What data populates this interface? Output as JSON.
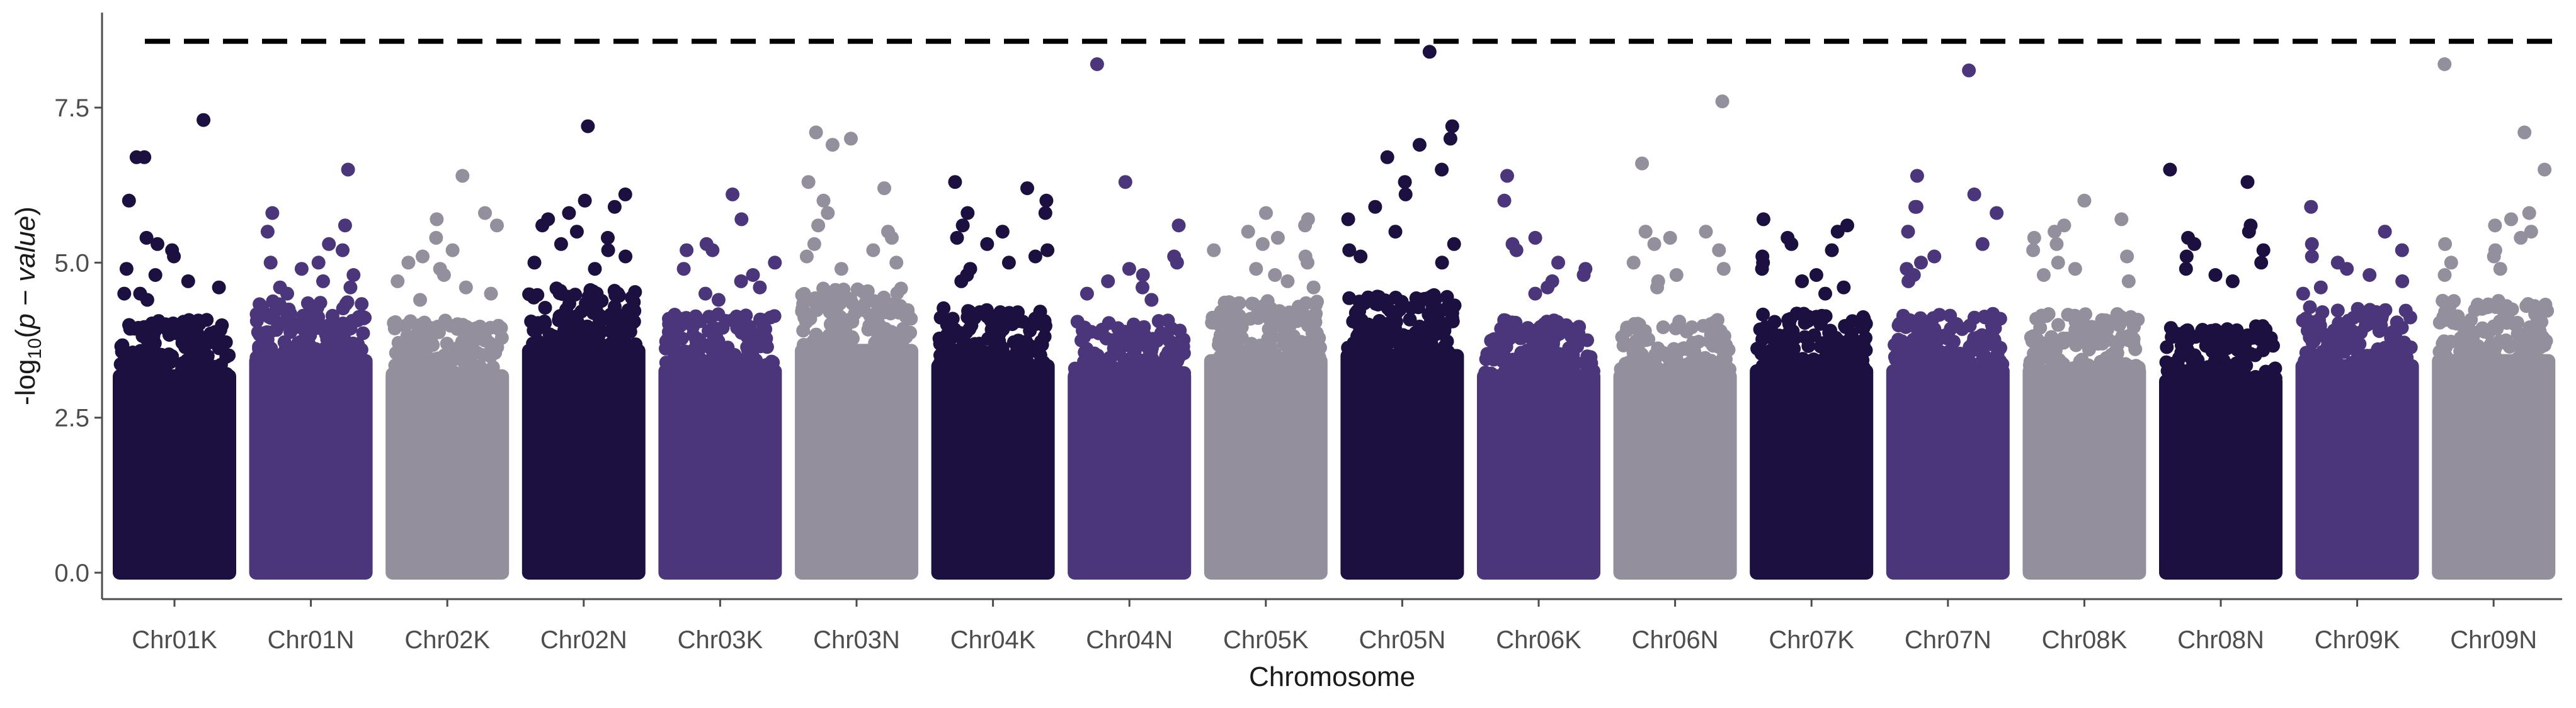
{
  "chart_data": {
    "type": "scatter",
    "subtype": "manhattan",
    "title": "",
    "xlabel": "Chromosome",
    "ylabel": "-log10(p − value)",
    "ylabel_parts": {
      "prefix": "-log",
      "sub": "10",
      "open": "(",
      "var1": "p",
      "op": " − ",
      "var2": "value",
      "close": ")"
    },
    "ylim": [
      -0.1,
      8.75
    ],
    "yticks": [
      0.0,
      2.5,
      5.0,
      7.5
    ],
    "ytick_labels": [
      "0.0",
      "2.5",
      "5.0",
      "7.5"
    ],
    "significance_threshold": 8.57,
    "grid": false,
    "legend": "none",
    "colors": [
      "#1c1040",
      "#4b357b",
      "#948f9c"
    ],
    "categories": [
      "Chr01K",
      "Chr01N",
      "Chr02K",
      "Chr02N",
      "Chr03K",
      "Chr03N",
      "Chr04K",
      "Chr04N",
      "Chr05K",
      "Chr05N",
      "Chr06K",
      "Chr06N",
      "Chr07K",
      "Chr07N",
      "Chr08K",
      "Chr08N",
      "Chr09K",
      "Chr09N"
    ],
    "series": [
      {
        "chromosome": "Chr01K",
        "color_index": 0,
        "bulk_max": 4.0,
        "peaks": [
          7.3,
          6.7,
          6.7,
          6.0,
          5.4,
          5.3,
          5.2,
          5.1,
          4.9,
          4.8,
          4.7,
          4.6,
          4.5,
          4.5,
          4.4
        ]
      },
      {
        "chromosome": "Chr01N",
        "color_index": 1,
        "bulk_max": 4.3,
        "peaks": [
          6.5,
          5.8,
          5.6,
          5.5,
          5.3,
          5.2,
          5.0,
          5.0,
          4.9,
          4.8,
          4.7,
          4.6,
          4.6,
          4.5
        ]
      },
      {
        "chromosome": "Chr02K",
        "color_index": 2,
        "bulk_max": 4.0,
        "peaks": [
          6.4,
          5.8,
          5.7,
          5.6,
          5.4,
          5.2,
          5.1,
          5.0,
          4.9,
          4.8,
          4.7,
          4.6,
          4.5,
          4.4
        ]
      },
      {
        "chromosome": "Chr02N",
        "color_index": 0,
        "bulk_max": 4.5,
        "peaks": [
          7.2,
          6.1,
          6.0,
          5.9,
          5.8,
          5.7,
          5.6,
          5.5,
          5.4,
          5.3,
          5.2,
          5.1,
          5.0,
          4.9
        ]
      },
      {
        "chromosome": "Chr03K",
        "color_index": 1,
        "bulk_max": 4.1,
        "peaks": [
          6.1,
          5.7,
          5.3,
          5.2,
          5.2,
          5.0,
          4.9,
          4.8,
          4.7,
          4.6,
          4.5,
          4.4
        ]
      },
      {
        "chromosome": "Chr03N",
        "color_index": 2,
        "bulk_max": 4.5,
        "peaks": [
          7.1,
          7.0,
          6.9,
          6.3,
          6.2,
          6.0,
          5.8,
          5.6,
          5.5,
          5.4,
          5.3,
          5.2,
          5.1,
          5.0,
          4.9
        ]
      },
      {
        "chromosome": "Chr04K",
        "color_index": 0,
        "bulk_max": 4.2,
        "peaks": [
          6.3,
          6.2,
          6.0,
          5.8,
          5.8,
          5.6,
          5.5,
          5.4,
          5.3,
          5.2,
          5.1,
          5.0,
          4.9,
          4.8,
          4.7
        ]
      },
      {
        "chromosome": "Chr04N",
        "color_index": 1,
        "bulk_max": 4.0,
        "peaks": [
          8.2,
          6.3,
          5.6,
          5.1,
          5.0,
          4.9,
          4.8,
          4.7,
          4.6,
          4.5,
          4.4
        ]
      },
      {
        "chromosome": "Chr05K",
        "color_index": 2,
        "bulk_max": 4.3,
        "peaks": [
          5.8,
          5.7,
          5.6,
          5.5,
          5.4,
          5.3,
          5.2,
          5.1,
          5.0,
          4.9,
          4.8,
          4.7,
          4.6
        ]
      },
      {
        "chromosome": "Chr05N",
        "color_index": 0,
        "bulk_max": 4.4,
        "peaks": [
          8.4,
          7.2,
          7.0,
          6.9,
          6.7,
          6.5,
          6.3,
          6.1,
          5.9,
          5.7,
          5.5,
          5.3,
          5.2,
          5.1,
          5.0
        ]
      },
      {
        "chromosome": "Chr06K",
        "color_index": 1,
        "bulk_max": 4.0,
        "peaks": [
          6.4,
          6.0,
          5.4,
          5.3,
          5.2,
          5.0,
          4.9,
          4.8,
          4.7,
          4.6,
          4.5
        ]
      },
      {
        "chromosome": "Chr06N",
        "color_index": 2,
        "bulk_max": 4.0,
        "peaks": [
          7.6,
          6.6,
          5.5,
          5.5,
          5.4,
          5.3,
          5.2,
          5.0,
          4.9,
          4.8,
          4.7,
          4.6
        ]
      },
      {
        "chromosome": "Chr07K",
        "color_index": 0,
        "bulk_max": 4.1,
        "peaks": [
          5.7,
          5.6,
          5.5,
          5.4,
          5.3,
          5.2,
          5.1,
          5.0,
          4.9,
          4.8,
          4.7,
          4.6,
          4.5
        ]
      },
      {
        "chromosome": "Chr07N",
        "color_index": 1,
        "bulk_max": 4.1,
        "peaks": [
          8.1,
          6.4,
          6.1,
          5.9,
          5.9,
          5.8,
          5.5,
          5.3,
          5.1,
          5.0,
          4.9,
          4.8,
          4.7
        ]
      },
      {
        "chromosome": "Chr08K",
        "color_index": 2,
        "bulk_max": 4.1,
        "peaks": [
          6.0,
          5.7,
          5.6,
          5.5,
          5.4,
          5.3,
          5.2,
          5.1,
          5.0,
          4.9,
          4.8,
          4.7
        ]
      },
      {
        "chromosome": "Chr08N",
        "color_index": 0,
        "bulk_max": 3.9,
        "peaks": [
          6.5,
          6.3,
          5.6,
          5.5,
          5.4,
          5.3,
          5.2,
          5.1,
          5.0,
          4.9,
          4.8,
          4.7
        ]
      },
      {
        "chromosome": "Chr09K",
        "color_index": 1,
        "bulk_max": 4.2,
        "peaks": [
          5.9,
          5.5,
          5.3,
          5.2,
          5.1,
          5.0,
          4.9,
          4.8,
          4.7,
          4.6,
          4.5
        ]
      },
      {
        "chromosome": "Chr09N",
        "color_index": 2,
        "bulk_max": 4.3,
        "peaks": [
          8.2,
          7.1,
          6.5,
          5.8,
          5.7,
          5.6,
          5.5,
          5.4,
          5.3,
          5.2,
          5.1,
          5.0,
          4.9,
          4.8
        ]
      }
    ]
  }
}
